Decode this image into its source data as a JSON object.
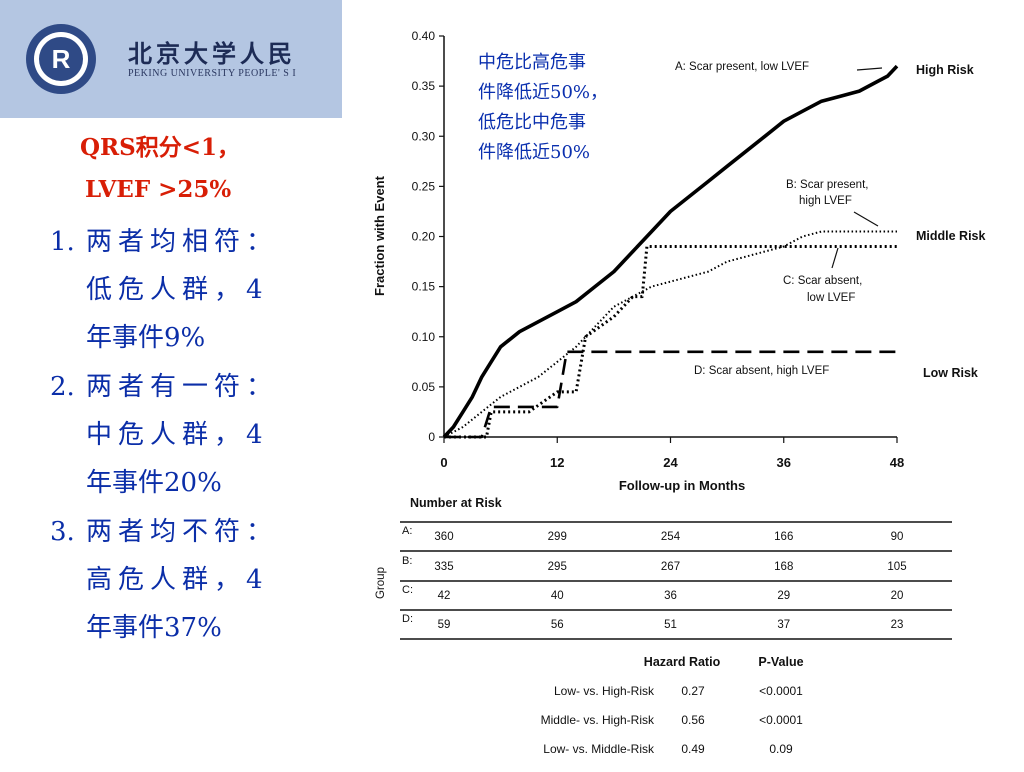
{
  "header": {
    "title": "北京大学人民",
    "subtitle": "PEKING UNIVERSITY PEOPLE' S I"
  },
  "criteria": {
    "line1": "QRS积分<1，",
    "line2": "LVEF >25%"
  },
  "items": [
    {
      "num": "1.",
      "lines": [
        "两者均相符：",
        "低危人群，4",
        "年事件9%"
      ]
    },
    {
      "num": "2.",
      "lines": [
        "两者有一符：",
        "中危人群，4",
        "年事件20%"
      ]
    },
    {
      "num": "3.",
      "lines": [
        "两者均不符：",
        "高危人群，4",
        "年事件37%"
      ]
    }
  ],
  "note": {
    "lines": [
      "中危比高危事",
      "件降低近50%，",
      "低危比中危事",
      "件降低近50%"
    ]
  },
  "colors": {
    "header_bg": "#b4c6e2",
    "criteria_red": "#d81e06",
    "item_blue": "#0b2ea8",
    "note_blue": "#0a2fae"
  },
  "chart_data": {
    "type": "line",
    "title": "",
    "xlabel": "Follow-up in Months",
    "ylabel": "Fraction with Event",
    "xlim": [
      0,
      48
    ],
    "ylim": [
      0,
      0.4
    ],
    "xticks": [
      0,
      12,
      24,
      36,
      48
    ],
    "xtick_labels": [
      "0",
      "12",
      "24",
      "36",
      "48"
    ],
    "yticks": [
      0,
      0.05,
      0.1,
      0.15,
      0.2,
      0.25,
      0.3,
      0.35,
      0.4
    ],
    "ytick_labels": [
      "0",
      "0.05",
      "0.10",
      "0.15",
      "0.20",
      "0.25",
      "0.30",
      "0.35",
      "0.40"
    ],
    "series": [
      {
        "name": "A: Scar present, low LVEF",
        "group": "High Risk",
        "style": "solid",
        "x": [
          0,
          1,
          2,
          3,
          4,
          5,
          6,
          8,
          10,
          12,
          14,
          16,
          18,
          20,
          22,
          24,
          26,
          28,
          30,
          32,
          34,
          36,
          38,
          40,
          42,
          44,
          46,
          47,
          48
        ],
        "y": [
          0,
          0.01,
          0.025,
          0.04,
          0.06,
          0.075,
          0.09,
          0.105,
          0.115,
          0.125,
          0.135,
          0.15,
          0.165,
          0.185,
          0.205,
          0.225,
          0.24,
          0.255,
          0.27,
          0.285,
          0.3,
          0.315,
          0.325,
          0.335,
          0.34,
          0.345,
          0.355,
          0.36,
          0.37
        ]
      },
      {
        "name": "B: Scar present, high LVEF",
        "group": "Middle Risk",
        "style": "fine-dotted",
        "x": [
          0,
          2,
          4,
          6,
          8,
          10,
          12,
          14,
          16,
          18,
          20,
          22,
          24,
          26,
          28,
          30,
          32,
          34,
          36,
          37,
          38,
          40,
          42,
          44,
          46,
          48
        ],
        "y": [
          0,
          0.01,
          0.025,
          0.04,
          0.05,
          0.06,
          0.075,
          0.09,
          0.11,
          0.13,
          0.14,
          0.15,
          0.155,
          0.16,
          0.165,
          0.175,
          0.18,
          0.185,
          0.19,
          0.195,
          0.2,
          0.205,
          0.205,
          0.205,
          0.205,
          0.205
        ]
      },
      {
        "name": "C: Scar absent, low LVEF",
        "group": "Middle Risk",
        "style": "dotted",
        "x": [
          0,
          4.5,
          5,
          9,
          12,
          14,
          15,
          18,
          20,
          21,
          21.5,
          22,
          24,
          30,
          36,
          42,
          48
        ],
        "y": [
          0,
          0,
          0.025,
          0.025,
          0.045,
          0.045,
          0.1,
          0.12,
          0.14,
          0.14,
          0.19,
          0.19,
          0.19,
          0.19,
          0.19,
          0.19,
          0.19
        ]
      },
      {
        "name": "D: Scar absent, high LVEF",
        "group": "Low Risk",
        "style": "dashed",
        "x": [
          0,
          4,
          5,
          12,
          13,
          36,
          48
        ],
        "y": [
          0,
          0,
          0.03,
          0.03,
          0.085,
          0.085,
          0.085
        ]
      }
    ],
    "risk_labels": [
      "High Risk",
      "Middle Risk",
      "Low Risk"
    ],
    "number_at_risk": {
      "title": "Number at Risk",
      "group_label": "Group",
      "rows": [
        {
          "group": "A:",
          "values": [
            360,
            299,
            254,
            166,
            90
          ]
        },
        {
          "group": "B:",
          "values": [
            335,
            295,
            267,
            168,
            105
          ]
        },
        {
          "group": "C:",
          "values": [
            42,
            40,
            36,
            29,
            20
          ]
        },
        {
          "group": "D:",
          "values": [
            59,
            56,
            51,
            37,
            23
          ]
        }
      ]
    },
    "hazard_table": {
      "headers": [
        "Hazard Ratio",
        "P-Value"
      ],
      "rows": [
        {
          "label": "Low- vs. High-Risk",
          "hr": "0.27",
          "p": "<0.0001"
        },
        {
          "label": "Middle- vs. High-Risk",
          "hr": "0.56",
          "p": "<0.0001"
        },
        {
          "label": "Low- vs. Middle-Risk",
          "hr": "0.49",
          "p": "0.09"
        }
      ]
    }
  }
}
